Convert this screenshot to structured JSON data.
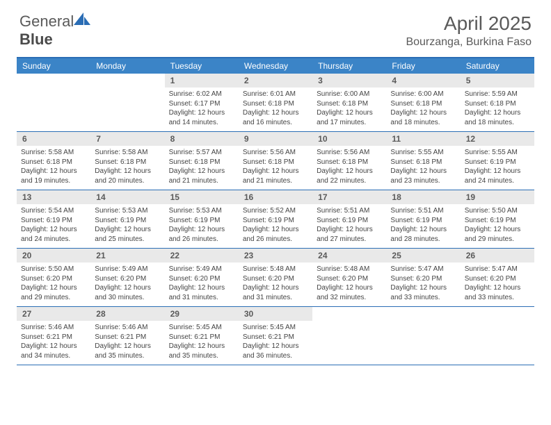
{
  "brand": {
    "name_a": "General",
    "name_b": "Blue"
  },
  "title": "April 2025",
  "location": "Bourzanga, Burkina Faso",
  "colors": {
    "header_bg": "#3b84c7",
    "header_text": "#ffffff",
    "border": "#2a6db5",
    "daynum_bg": "#e9e9e9",
    "text": "#5a5a5a",
    "body_text": "#444444",
    "page_bg": "#ffffff"
  },
  "typography": {
    "title_fontsize": 28,
    "location_fontsize": 16,
    "dayhead_fontsize": 12,
    "daynum_fontsize": 12,
    "info_fontsize": 10
  },
  "day_names": [
    "Sunday",
    "Monday",
    "Tuesday",
    "Wednesday",
    "Thursday",
    "Friday",
    "Saturday"
  ],
  "weeks": [
    [
      null,
      null,
      {
        "n": "1",
        "sr": "Sunrise: 6:02 AM",
        "ss": "Sunset: 6:17 PM",
        "dl": "Daylight: 12 hours and 14 minutes."
      },
      {
        "n": "2",
        "sr": "Sunrise: 6:01 AM",
        "ss": "Sunset: 6:18 PM",
        "dl": "Daylight: 12 hours and 16 minutes."
      },
      {
        "n": "3",
        "sr": "Sunrise: 6:00 AM",
        "ss": "Sunset: 6:18 PM",
        "dl": "Daylight: 12 hours and 17 minutes."
      },
      {
        "n": "4",
        "sr": "Sunrise: 6:00 AM",
        "ss": "Sunset: 6:18 PM",
        "dl": "Daylight: 12 hours and 18 minutes."
      },
      {
        "n": "5",
        "sr": "Sunrise: 5:59 AM",
        "ss": "Sunset: 6:18 PM",
        "dl": "Daylight: 12 hours and 18 minutes."
      }
    ],
    [
      {
        "n": "6",
        "sr": "Sunrise: 5:58 AM",
        "ss": "Sunset: 6:18 PM",
        "dl": "Daylight: 12 hours and 19 minutes."
      },
      {
        "n": "7",
        "sr": "Sunrise: 5:58 AM",
        "ss": "Sunset: 6:18 PM",
        "dl": "Daylight: 12 hours and 20 minutes."
      },
      {
        "n": "8",
        "sr": "Sunrise: 5:57 AM",
        "ss": "Sunset: 6:18 PM",
        "dl": "Daylight: 12 hours and 21 minutes."
      },
      {
        "n": "9",
        "sr": "Sunrise: 5:56 AM",
        "ss": "Sunset: 6:18 PM",
        "dl": "Daylight: 12 hours and 21 minutes."
      },
      {
        "n": "10",
        "sr": "Sunrise: 5:56 AM",
        "ss": "Sunset: 6:18 PM",
        "dl": "Daylight: 12 hours and 22 minutes."
      },
      {
        "n": "11",
        "sr": "Sunrise: 5:55 AM",
        "ss": "Sunset: 6:18 PM",
        "dl": "Daylight: 12 hours and 23 minutes."
      },
      {
        "n": "12",
        "sr": "Sunrise: 5:55 AM",
        "ss": "Sunset: 6:19 PM",
        "dl": "Daylight: 12 hours and 24 minutes."
      }
    ],
    [
      {
        "n": "13",
        "sr": "Sunrise: 5:54 AM",
        "ss": "Sunset: 6:19 PM",
        "dl": "Daylight: 12 hours and 24 minutes."
      },
      {
        "n": "14",
        "sr": "Sunrise: 5:53 AM",
        "ss": "Sunset: 6:19 PM",
        "dl": "Daylight: 12 hours and 25 minutes."
      },
      {
        "n": "15",
        "sr": "Sunrise: 5:53 AM",
        "ss": "Sunset: 6:19 PM",
        "dl": "Daylight: 12 hours and 26 minutes."
      },
      {
        "n": "16",
        "sr": "Sunrise: 5:52 AM",
        "ss": "Sunset: 6:19 PM",
        "dl": "Daylight: 12 hours and 26 minutes."
      },
      {
        "n": "17",
        "sr": "Sunrise: 5:51 AM",
        "ss": "Sunset: 6:19 PM",
        "dl": "Daylight: 12 hours and 27 minutes."
      },
      {
        "n": "18",
        "sr": "Sunrise: 5:51 AM",
        "ss": "Sunset: 6:19 PM",
        "dl": "Daylight: 12 hours and 28 minutes."
      },
      {
        "n": "19",
        "sr": "Sunrise: 5:50 AM",
        "ss": "Sunset: 6:19 PM",
        "dl": "Daylight: 12 hours and 29 minutes."
      }
    ],
    [
      {
        "n": "20",
        "sr": "Sunrise: 5:50 AM",
        "ss": "Sunset: 6:20 PM",
        "dl": "Daylight: 12 hours and 29 minutes."
      },
      {
        "n": "21",
        "sr": "Sunrise: 5:49 AM",
        "ss": "Sunset: 6:20 PM",
        "dl": "Daylight: 12 hours and 30 minutes."
      },
      {
        "n": "22",
        "sr": "Sunrise: 5:49 AM",
        "ss": "Sunset: 6:20 PM",
        "dl": "Daylight: 12 hours and 31 minutes."
      },
      {
        "n": "23",
        "sr": "Sunrise: 5:48 AM",
        "ss": "Sunset: 6:20 PM",
        "dl": "Daylight: 12 hours and 31 minutes."
      },
      {
        "n": "24",
        "sr": "Sunrise: 5:48 AM",
        "ss": "Sunset: 6:20 PM",
        "dl": "Daylight: 12 hours and 32 minutes."
      },
      {
        "n": "25",
        "sr": "Sunrise: 5:47 AM",
        "ss": "Sunset: 6:20 PM",
        "dl": "Daylight: 12 hours and 33 minutes."
      },
      {
        "n": "26",
        "sr": "Sunrise: 5:47 AM",
        "ss": "Sunset: 6:20 PM",
        "dl": "Daylight: 12 hours and 33 minutes."
      }
    ],
    [
      {
        "n": "27",
        "sr": "Sunrise: 5:46 AM",
        "ss": "Sunset: 6:21 PM",
        "dl": "Daylight: 12 hours and 34 minutes."
      },
      {
        "n": "28",
        "sr": "Sunrise: 5:46 AM",
        "ss": "Sunset: 6:21 PM",
        "dl": "Daylight: 12 hours and 35 minutes."
      },
      {
        "n": "29",
        "sr": "Sunrise: 5:45 AM",
        "ss": "Sunset: 6:21 PM",
        "dl": "Daylight: 12 hours and 35 minutes."
      },
      {
        "n": "30",
        "sr": "Sunrise: 5:45 AM",
        "ss": "Sunset: 6:21 PM",
        "dl": "Daylight: 12 hours and 36 minutes."
      },
      null,
      null,
      null
    ]
  ]
}
